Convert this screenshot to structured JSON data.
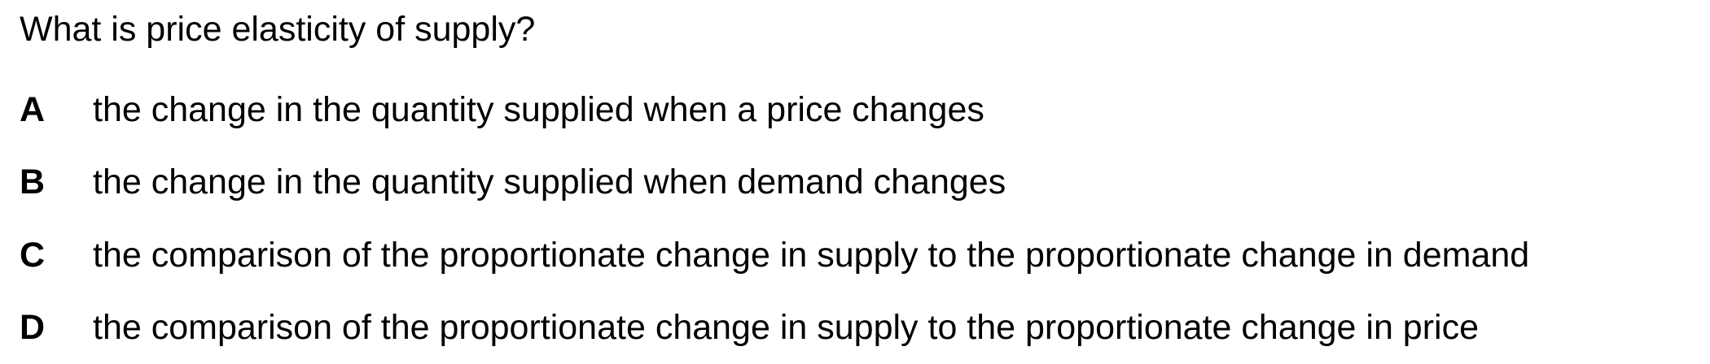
{
  "question": "What is price elasticity of supply?",
  "options": [
    {
      "letter": "A",
      "text": "the change in the quantity supplied when a price changes"
    },
    {
      "letter": "B",
      "text": "the change in the quantity supplied when demand changes"
    },
    {
      "letter": "C",
      "text": "the comparison of the proportionate change in supply to the proportionate change in demand"
    },
    {
      "letter": "D",
      "text": "the comparison of the proportionate change in supply to the proportionate change in price"
    }
  ]
}
